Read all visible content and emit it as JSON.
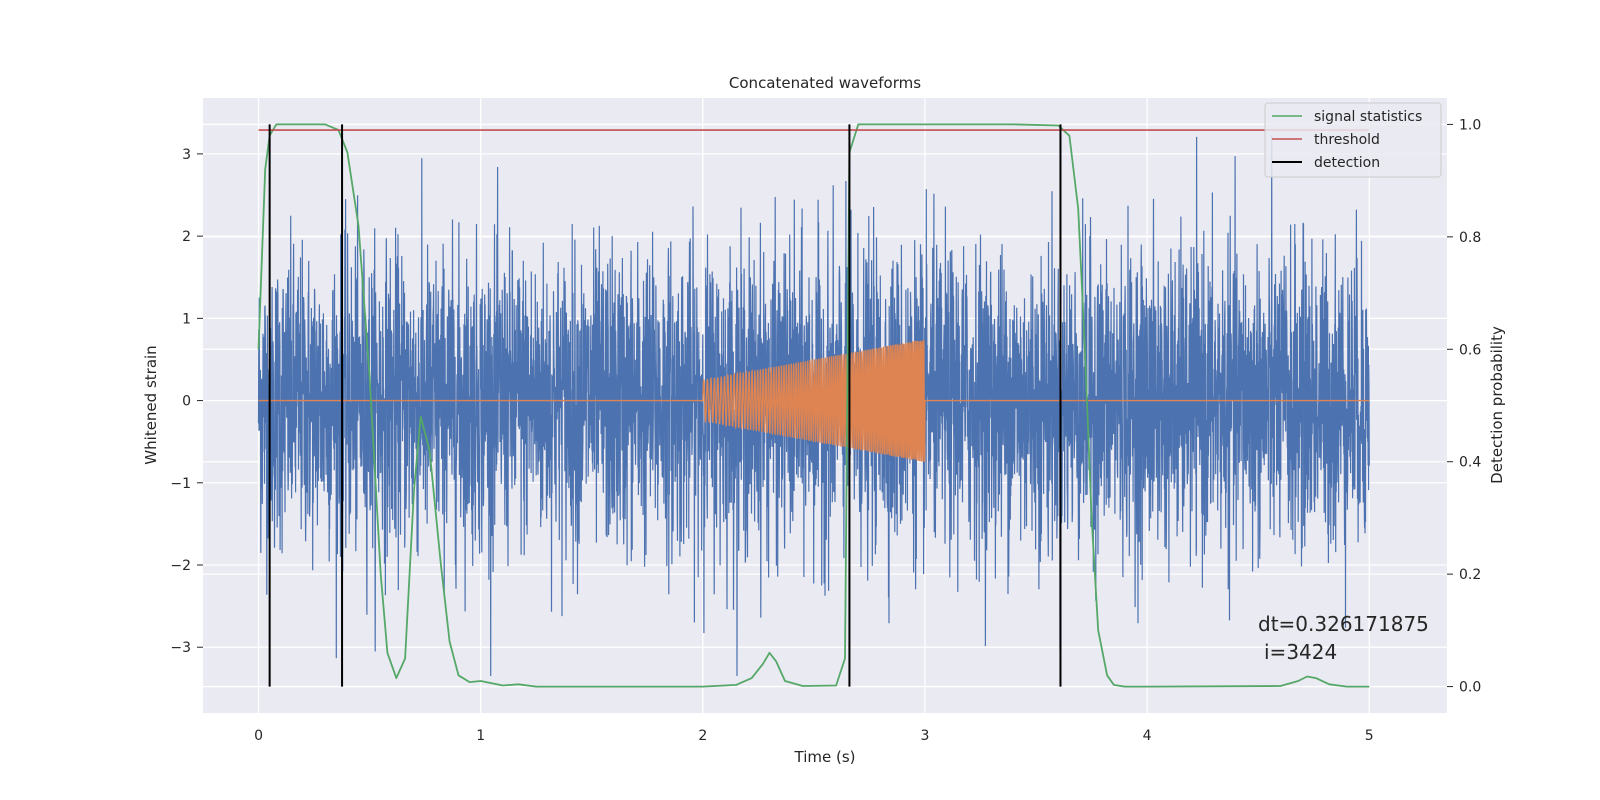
{
  "chart_data": {
    "type": "line",
    "title": "Concatenated waveforms",
    "xlabel": "Time (s)",
    "ylabel": "Whitened strain",
    "y2label": "Detection probability",
    "xlim": [
      -0.25,
      5.35
    ],
    "ylim": [
      -3.8,
      3.68
    ],
    "y2lim": [
      -0.047,
      1.047
    ],
    "grid": true,
    "legend_placement": "top-right",
    "x_ticks": [
      "0",
      "1",
      "2",
      "3",
      "4",
      "5"
    ],
    "y_ticks": [
      "3",
      "2",
      "1",
      "0",
      "−1",
      "−2",
      "−3"
    ],
    "y2_ticks": [
      "1.0",
      "0.8",
      "0.6",
      "0.4",
      "0.2",
      "0.0"
    ],
    "annotation": [
      "dt=0.326171875",
      "i=3424"
    ],
    "legend": [
      {
        "label": "signal statistics",
        "color": "#55a868"
      },
      {
        "label": "threshold",
        "color": "#c44e52"
      },
      {
        "label": "detection",
        "color": "#000000"
      }
    ],
    "series": [
      {
        "color": "#4c72b0",
        "axis": "left",
        "description_x_range": [
          0,
          5
        ],
        "envelope_peak": 3.35
      },
      {
        "color": "#dd8452",
        "axis": "left",
        "x": [
          0,
          2,
          2,
          2.5,
          3,
          3,
          5
        ],
        "amplitude": [
          0,
          0,
          0.25,
          0.5,
          0.75,
          0,
          0
        ]
      },
      {
        "name": "signal statistics",
        "color": "#55a868",
        "axis": "right",
        "x": [
          0,
          0.03,
          0.05,
          0.08,
          0.15,
          0.3,
          0.36,
          0.4,
          0.45,
          0.5,
          0.55,
          0.58,
          0.62,
          0.66,
          0.7,
          0.73,
          0.77,
          0.82,
          0.86,
          0.9,
          0.95,
          1.0,
          1.1,
          1.17,
          1.25,
          1.5,
          2.0,
          2.15,
          2.22,
          2.27,
          2.3,
          2.33,
          2.37,
          2.45,
          2.6,
          2.64,
          2.66,
          2.7,
          3.0,
          3.4,
          3.6,
          3.65,
          3.69,
          3.72,
          3.75,
          3.78,
          3.82,
          3.85,
          3.9,
          4.0,
          4.6,
          4.68,
          4.72,
          4.76,
          4.82,
          4.9,
          5.0
        ],
        "values": [
          0.6,
          0.92,
          0.98,
          1.0,
          1.0,
          1.0,
          0.99,
          0.95,
          0.82,
          0.55,
          0.2,
          0.06,
          0.015,
          0.05,
          0.35,
          0.48,
          0.42,
          0.22,
          0.08,
          0.02,
          0.008,
          0.01,
          0.002,
          0.004,
          0.0,
          0.0,
          0.0,
          0.003,
          0.015,
          0.04,
          0.06,
          0.045,
          0.01,
          0.001,
          0.002,
          0.05,
          0.95,
          1.0,
          1.0,
          1.0,
          0.998,
          0.98,
          0.85,
          0.6,
          0.3,
          0.1,
          0.02,
          0.003,
          0.0,
          0.0,
          0.001,
          0.01,
          0.018,
          0.015,
          0.004,
          0.0,
          0.0
        ]
      },
      {
        "name": "threshold",
        "color": "#c44e52",
        "axis": "right",
        "x": [
          0,
          5
        ],
        "values": [
          0.99,
          0.99
        ]
      },
      {
        "name": "detection",
        "color": "#000000",
        "axis": "right",
        "x": [
          0.05,
          0.376,
          2.66,
          3.61
        ],
        "y_range": [
          0,
          1
        ]
      }
    ]
  }
}
